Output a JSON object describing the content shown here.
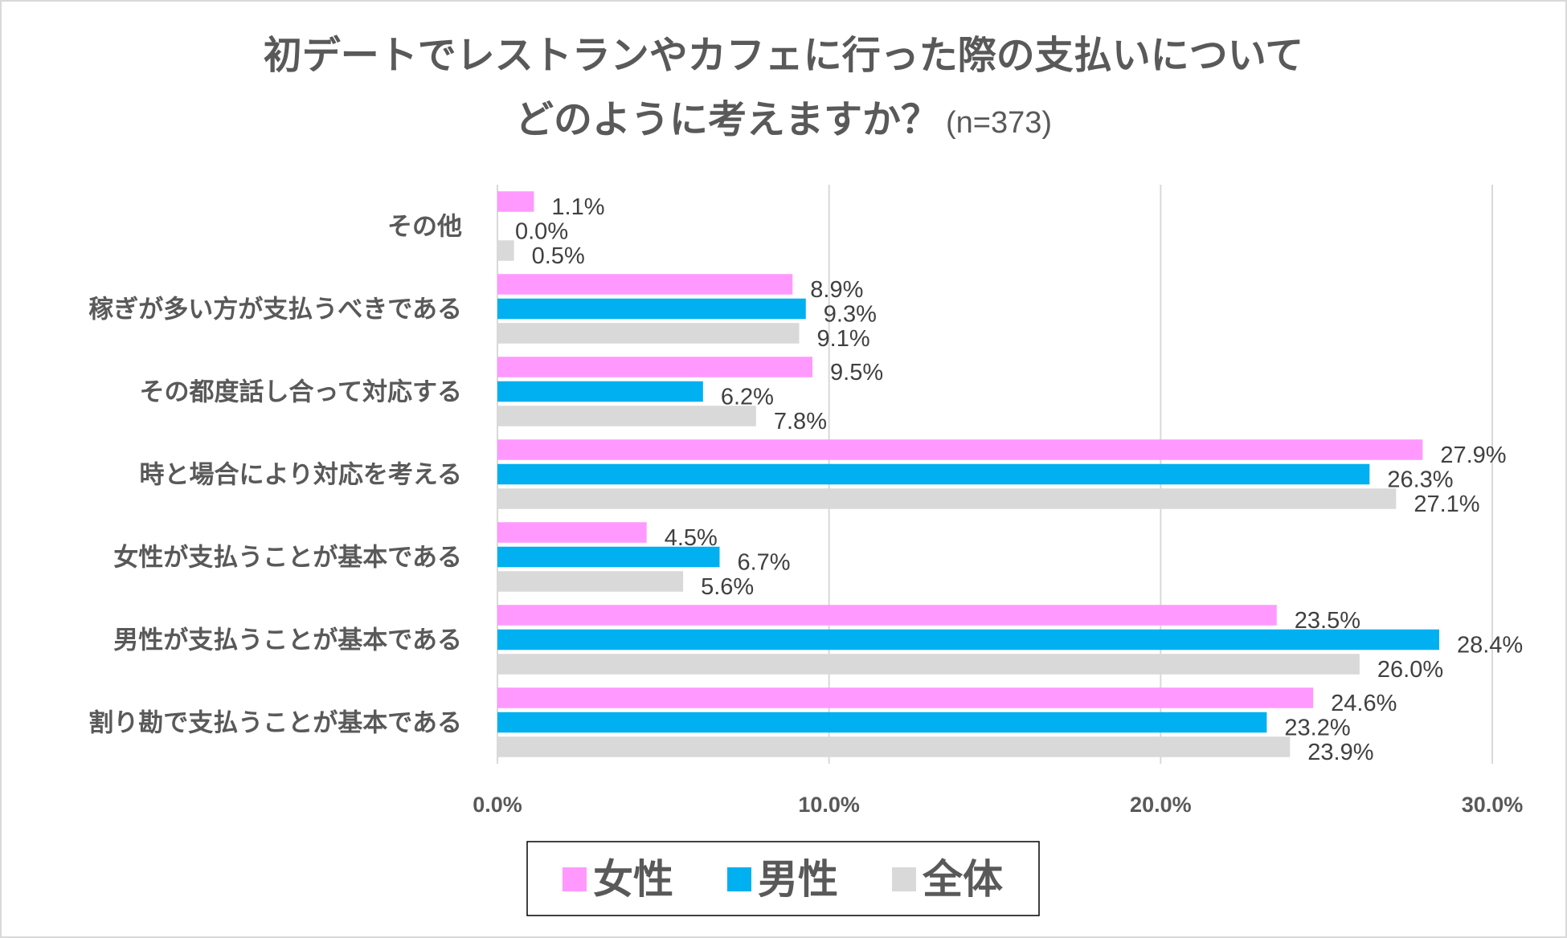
{
  "chart_data": {
    "type": "bar",
    "orientation": "horizontal",
    "title_line1": "初デートでレストランやカフェに行った際の支払いについて",
    "title_line2": "どのように考えますか？",
    "title_note": "(n=373)",
    "categories": [
      "その他",
      "稼ぎが多い方が支払うべきである",
      "その都度話し合って対応する",
      "時と場合により対応を考える",
      "女性が支払うことが基本である",
      "男性が支払うことが基本である",
      "割り勘で支払うことが基本である"
    ],
    "series": [
      {
        "name": "女性",
        "color": "#ff99ff",
        "values": [
          1.1,
          8.9,
          9.5,
          27.9,
          4.5,
          23.5,
          24.6
        ]
      },
      {
        "name": "男性",
        "color": "#00b0f0",
        "values": [
          0.0,
          9.3,
          6.2,
          26.3,
          6.7,
          28.4,
          23.2
        ]
      },
      {
        "name": "全体",
        "color": "#d9d9d9",
        "values": [
          0.5,
          9.1,
          7.8,
          27.1,
          5.6,
          26.0,
          23.9
        ]
      }
    ],
    "xlim": [
      0,
      30
    ],
    "xticks": [
      "0.0%",
      "10.0%",
      "20.0%",
      "30.0%"
    ],
    "value_suffix": "%",
    "grid": true,
    "legend_position": "bottom"
  }
}
